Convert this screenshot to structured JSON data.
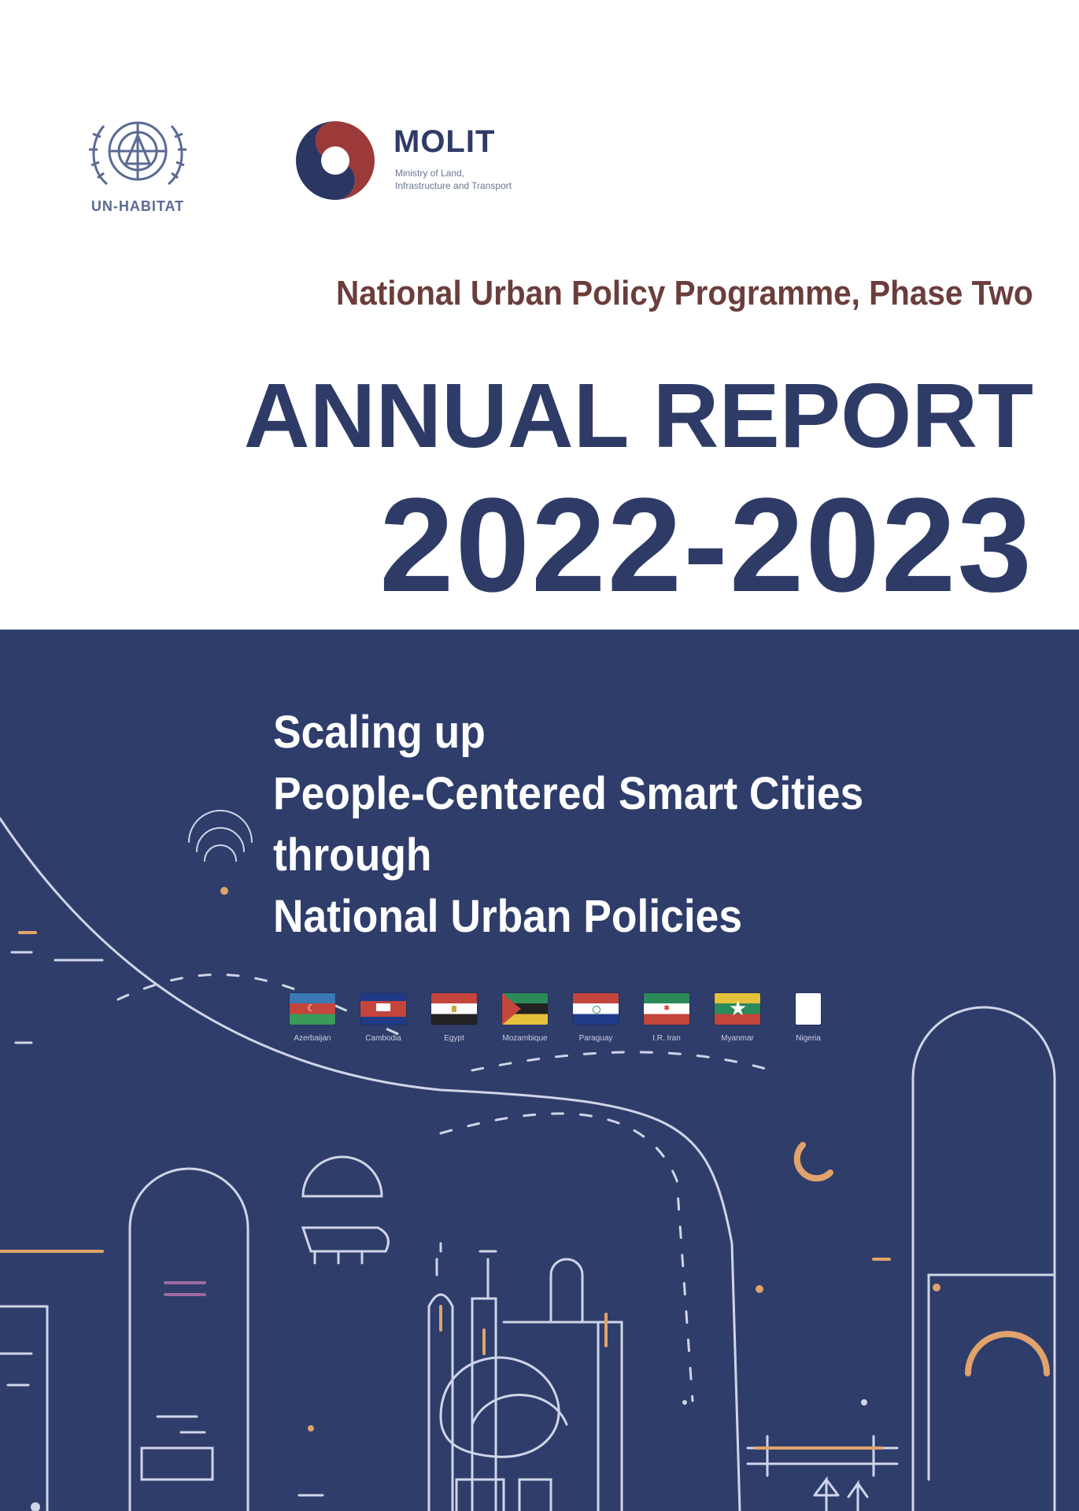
{
  "logos": {
    "unhabitat_label": "UN-HABITAT",
    "molit_name": "MOLIT",
    "molit_subtitle_line1": "Ministry of Land,",
    "molit_subtitle_line2": "Infrastructure and Transport"
  },
  "header": {
    "programme": "National Urban Policy Programme, Phase Two",
    "title": "ANNUAL REPORT",
    "years": "2022-2023"
  },
  "subtitle": {
    "line1": "Scaling up",
    "line2": "People-Centered Smart Cities",
    "line3": "through",
    "line4": "National Urban Policies"
  },
  "countries": [
    {
      "name": "Azerbaijan",
      "flag": "azerbaijan-flag"
    },
    {
      "name": "Cambodia",
      "flag": "cambodia-flag"
    },
    {
      "name": "Egypt",
      "flag": "egypt-flag"
    },
    {
      "name": "Mozambique",
      "flag": "mozambique-flag"
    },
    {
      "name": "Paraguay",
      "flag": "paraguay-flag"
    },
    {
      "name": "I.R. Iran",
      "flag": "iran-flag"
    },
    {
      "name": "Myanmar",
      "flag": "myanmar-flag"
    },
    {
      "name": "Nigeria",
      "flag": "nigeria-flag"
    }
  ],
  "colors": {
    "navy": "#2f3b67",
    "panel": "#2f3d6b",
    "programme_text": "#6b3d3b",
    "line_white": "#cfd5e8",
    "accent_orange": "#e1a36b"
  }
}
